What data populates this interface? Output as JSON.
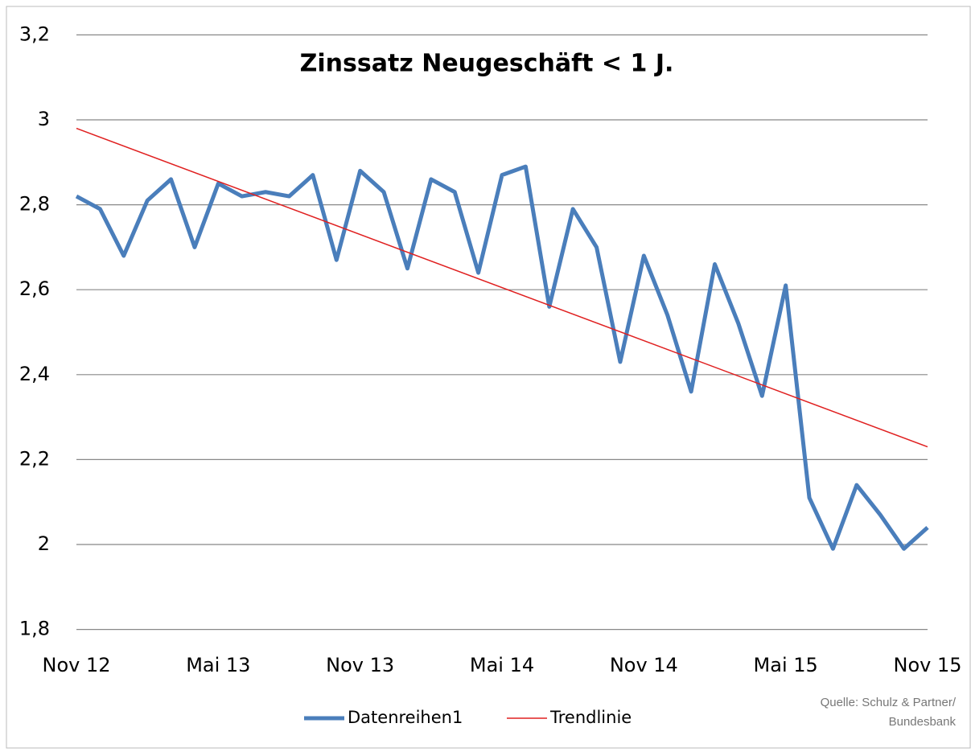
{
  "chart_data": {
    "type": "line",
    "title": "Zinssatz Neugeschäft < 1 J.",
    "categories": [
      "Nov 12",
      null,
      null,
      null,
      null,
      null,
      "Mai 13",
      null,
      null,
      null,
      null,
      null,
      "Nov 13",
      null,
      null,
      null,
      null,
      null,
      "Mai 14",
      null,
      null,
      null,
      null,
      null,
      "Nov 14",
      null,
      null,
      null,
      null,
      null,
      "Mai 15",
      null,
      null,
      null,
      null,
      null,
      "Nov 15"
    ],
    "series": [
      {
        "name": "Datenreihen1",
        "color": "#4a7ebb",
        "values": [
          2.82,
          2.79,
          2.68,
          2.81,
          2.86,
          2.7,
          2.85,
          2.82,
          2.83,
          2.82,
          2.87,
          2.67,
          2.88,
          2.83,
          2.65,
          2.86,
          2.83,
          2.64,
          2.87,
          2.89,
          2.56,
          2.79,
          2.7,
          2.43,
          2.68,
          2.54,
          2.36,
          2.66,
          2.52,
          2.35,
          2.61,
          2.11,
          1.99,
          2.14,
          2.07,
          1.99,
          2.04
        ]
      }
    ],
    "trendline": {
      "name": "Trendlinie",
      "color": "#e02020",
      "values": [
        2.98,
        2.23
      ]
    },
    "ylim": [
      1.8,
      3.2
    ],
    "yticks": [
      {
        "value": 1.8,
        "label": "1,8"
      },
      2,
      {
        "value": 2.2,
        "label": "2,2"
      },
      {
        "value": 2.4,
        "label": "2,4"
      },
      {
        "value": 2.6,
        "label": "2,6"
      },
      {
        "value": 2.8,
        "label": "2,8"
      },
      3,
      {
        "value": 3.2,
        "label": "3,2"
      }
    ],
    "grid": true,
    "source": [
      "Quelle: Schulz & Partner/",
      "Bundesbank"
    ]
  }
}
